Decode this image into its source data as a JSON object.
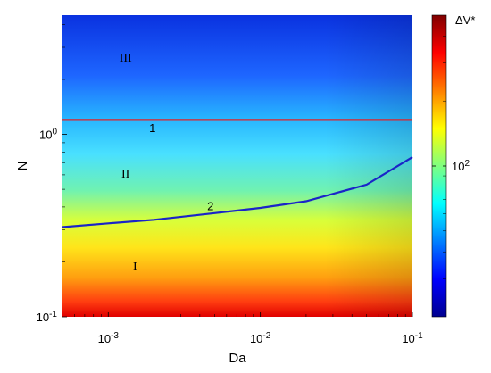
{
  "chart_data": {
    "type": "heatmap",
    "xlabel": "Da",
    "ylabel": "N",
    "xscale": "log",
    "yscale": "log",
    "xlim": [
      0.0005,
      0.1
    ],
    "ylim": [
      0.1,
      4.5
    ],
    "x_ticks": [
      {
        "value": 0.001,
        "base": "10",
        "exp": "-3"
      },
      {
        "value": 0.01,
        "base": "10",
        "exp": "-2"
      },
      {
        "value": 0.1,
        "base": "10",
        "exp": "-1"
      }
    ],
    "y_ticks": [
      {
        "value": 0.1,
        "base": "10",
        "exp": "-1"
      },
      {
        "value": 1,
        "base": "10",
        "exp": "0"
      }
    ],
    "colorbar": {
      "label": "ΔV*",
      "scale": "log",
      "range": [
        20,
        500
      ],
      "ticks": [
        {
          "value": 100,
          "base": "10",
          "exp": "2"
        }
      ],
      "colormap": "jet"
    },
    "series": [
      {
        "name": "1",
        "color": "#e0222a",
        "x": [
          0.0005,
          0.001,
          0.01,
          0.1
        ],
        "y": [
          1.2,
          1.2,
          1.2,
          1.2
        ]
      },
      {
        "name": "2",
        "color": "#1a24c8",
        "x": [
          0.0005,
          0.001,
          0.002,
          0.005,
          0.01,
          0.02,
          0.05,
          0.1
        ],
        "y": [
          0.31,
          0.325,
          0.34,
          0.37,
          0.395,
          0.43,
          0.53,
          0.75
        ]
      }
    ],
    "annotations": [
      {
        "text": "1",
        "x": 0.00195,
        "y": 1.03,
        "class": "curve-label"
      },
      {
        "text": "2",
        "x": 0.0047,
        "y": 0.385,
        "class": "curve-label"
      },
      {
        "text": "III",
        "x": 0.0013,
        "y": 2.5,
        "class": "region-label"
      },
      {
        "text": "II",
        "x": 0.0013,
        "y": 0.58,
        "class": "region-label"
      },
      {
        "text": "I",
        "x": 0.0015,
        "y": 0.18,
        "class": "region-label"
      }
    ]
  }
}
